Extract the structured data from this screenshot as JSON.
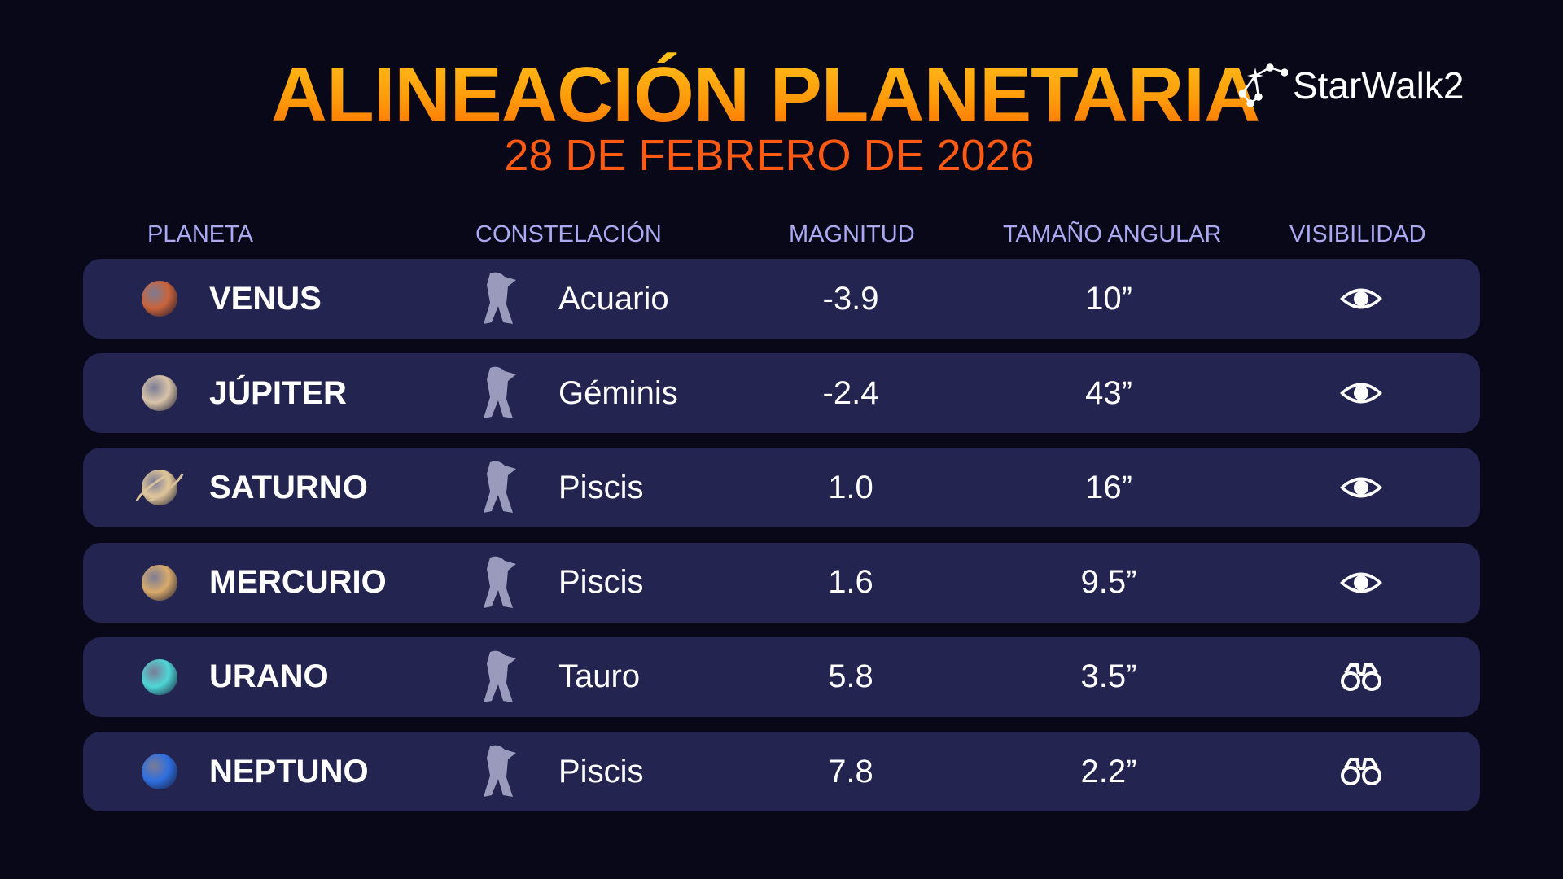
{
  "title": "ALINEACIÓN PLANETARIA",
  "date": "28 DE FEBRERO DE 2026",
  "logo": "StarWalk2",
  "headers": {
    "planet": "PLANETA",
    "constellation": "CONSTELACIÓN",
    "magnitude": "MAGNITUD",
    "angular_size": "TAMAÑO ANGULAR",
    "visibility": "VISIBILIDAD"
  },
  "rows": [
    {
      "planet": "VENUS",
      "constellation": "Acuario",
      "magnitude": "-3.9",
      "angular_size": "10”",
      "visibility": "eye-icon",
      "color": "#c9643a"
    },
    {
      "planet": "JÚPITER",
      "constellation": "Géminis",
      "magnitude": "-2.4",
      "angular_size": "43”",
      "visibility": "eye-icon",
      "color": "#d8c3a8"
    },
    {
      "planet": "SATURNO",
      "constellation": "Piscis",
      "magnitude": "1.0",
      "angular_size": "16”",
      "visibility": "eye-icon",
      "color": "#e3c89a"
    },
    {
      "planet": "MERCURIO",
      "constellation": "Piscis",
      "magnitude": "1.6",
      "angular_size": "9.5”",
      "visibility": "eye-icon",
      "color": "#d9aa6c"
    },
    {
      "planet": "URANO",
      "constellation": "Tauro",
      "magnitude": "5.8",
      "angular_size": "3.5”",
      "visibility": "binoculars-icon",
      "color": "#4fd6d6"
    },
    {
      "planet": "NEPTUNO",
      "constellation": "Piscis",
      "magnitude": "7.8",
      "angular_size": "2.2”",
      "visibility": "binoculars-icon",
      "color": "#2f6fe0"
    }
  ]
}
